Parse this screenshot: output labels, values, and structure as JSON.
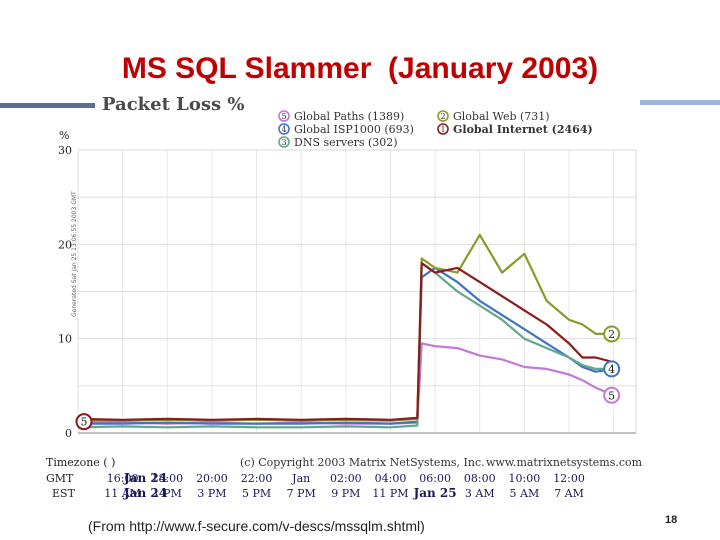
{
  "slide": {
    "title": "MS SQL Slammer  (January 2003)",
    "source": "(From http://www.f-secure.com/v-descs/mssqlm.shtml)",
    "page_number": "18",
    "accent_color": "#c00000"
  },
  "chart_data": {
    "type": "line",
    "title": "Packet Loss %",
    "ylabel": "%",
    "ylim": [
      0,
      30
    ],
    "yticks": [
      "30",
      "20",
      "10",
      "0"
    ],
    "side_label": "Generated Sat Jan 25 13:06:55 2003 GMT",
    "copyright": "(c) Copyright 2003 Matrix NetSystems, Inc.",
    "website": "www.matrixnetsystems.com",
    "x_axis": {
      "timezone_label": "Timezone ( )",
      "gmt_label": "GMT",
      "est_label": "EST",
      "gmt_ticks": [
        "Jan 24",
        "16:00",
        "18:00",
        "20:00",
        "22:00",
        "Jan",
        "02:00",
        "04:00",
        "06:00",
        "08:00",
        "10:00",
        "12:00"
      ],
      "est_ticks": [
        "Jan 24",
        "11 AM",
        "1 PM",
        "3 PM",
        "5 PM",
        "7 PM",
        "9 PM",
        "11 PM",
        "Jan 25",
        "3 AM",
        "5 AM",
        "7 AM"
      ]
    },
    "x": [
      0,
      1,
      2,
      3,
      4,
      5,
      6,
      7,
      7.6,
      7.7,
      8,
      8.5,
      9,
      9.5,
      10,
      10.5,
      11,
      11.3,
      11.6,
      12
    ],
    "series": [
      {
        "id": "5",
        "name": "Global Paths (1389)",
        "color": "#c278d6",
        "end_marker": "5",
        "values": [
          1.2,
          1.1,
          1.0,
          1.1,
          1.0,
          1.1,
          1.0,
          1.0,
          1.1,
          9.5,
          9.2,
          9.0,
          8.2,
          7.8,
          7.0,
          6.8,
          6.2,
          5.6,
          4.8,
          4.0
        ]
      },
      {
        "id": "4",
        "name": "Global ISP1000 (693)",
        "color": "#3f72c8",
        "end_marker": "4",
        "values": [
          1.0,
          1.0,
          1.1,
          1.0,
          1.0,
          1.0,
          1.1,
          1.0,
          1.2,
          16.5,
          17.5,
          16.0,
          14.0,
          12.5,
          11.0,
          9.5,
          8.0,
          7.0,
          6.5,
          6.8
        ]
      },
      {
        "id": "3",
        "name": "DNS servers (302)",
        "color": "#5fa98a",
        "end_marker": "",
        "values": [
          0.6,
          0.7,
          0.6,
          0.7,
          0.6,
          0.6,
          0.7,
          0.6,
          0.8,
          18.0,
          17.0,
          15.0,
          13.5,
          12.0,
          10.0,
          9.0,
          8.0,
          7.2,
          6.8,
          6.8
        ]
      },
      {
        "id": "2",
        "name": "Global Web (731)",
        "color": "#8a9a2a",
        "end_marker": "2",
        "values": [
          1.4,
          1.3,
          1.4,
          1.3,
          1.4,
          1.3,
          1.4,
          1.3,
          1.5,
          18.5,
          17.5,
          17.0,
          21.0,
          17.0,
          19.0,
          14.0,
          12.0,
          11.5,
          10.5,
          10.5
        ]
      },
      {
        "id": "1",
        "name": "Global Internet (2464)",
        "color": "#8b1c1c",
        "end_marker": "",
        "values": [
          1.5,
          1.4,
          1.5,
          1.4,
          1.5,
          1.4,
          1.5,
          1.4,
          1.6,
          18.0,
          17.0,
          17.5,
          16.0,
          14.5,
          13.0,
          11.5,
          9.5,
          8.0,
          8.0,
          7.5
        ]
      }
    ],
    "start_marker": "5"
  }
}
